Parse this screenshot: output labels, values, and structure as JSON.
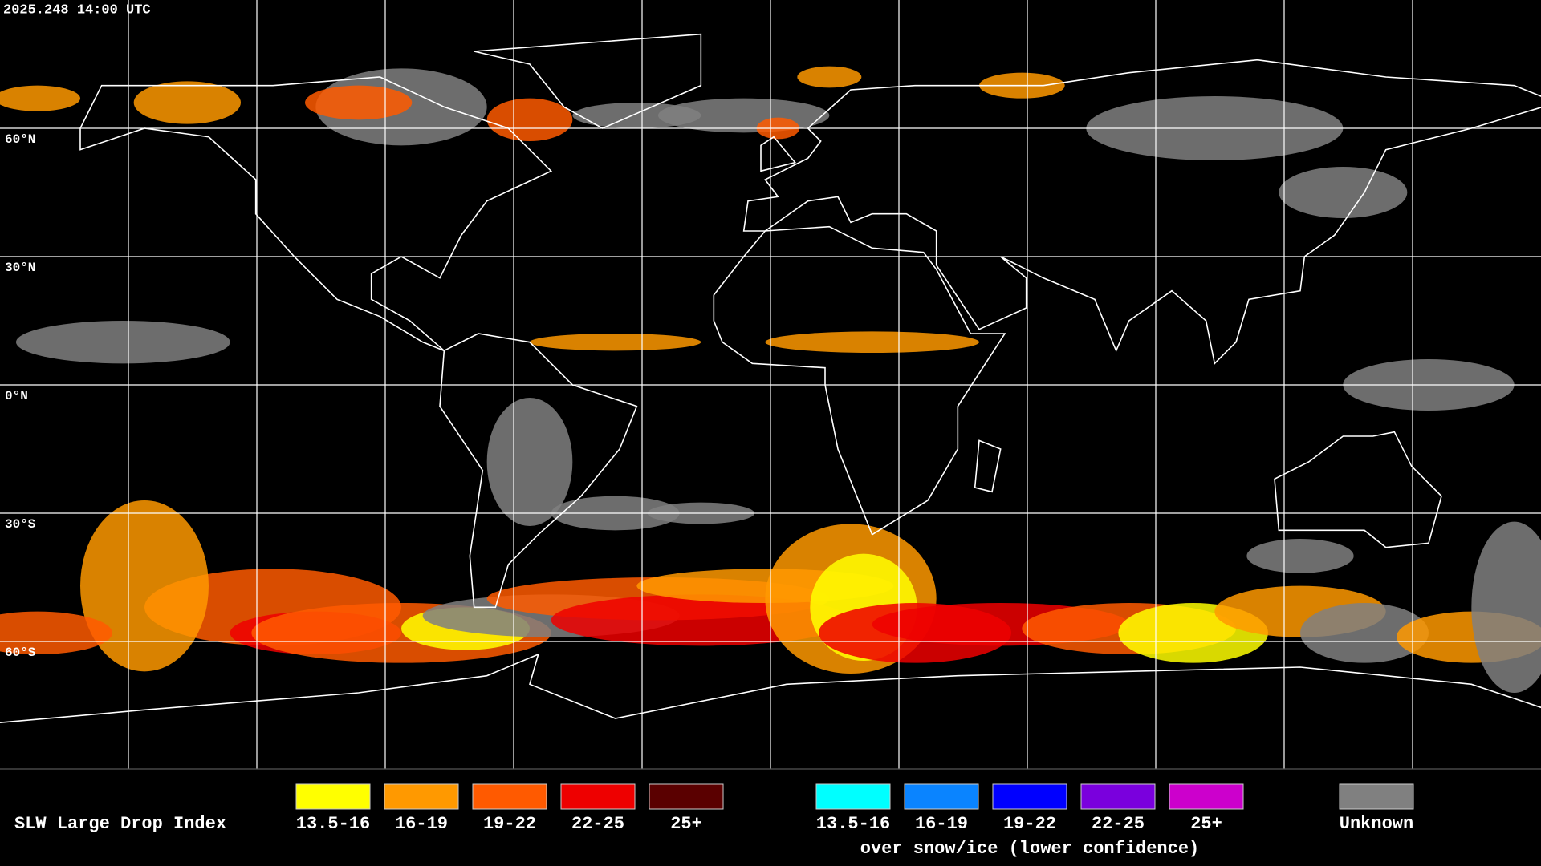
{
  "header": {
    "timestamp": "2025.248 14:00 UTC"
  },
  "map": {
    "latitude_labels": [
      "60°N",
      "30°N",
      "0°N",
      "30°S",
      "60°S"
    ]
  },
  "legend": {
    "title": "SLW Large Drop Index",
    "groups": [
      {
        "items": [
          {
            "label": "13.5-16",
            "color": "#ffff00"
          },
          {
            "label": "16-19",
            "color": "#ff9900"
          },
          {
            "label": "19-22",
            "color": "#ff5a00"
          },
          {
            "label": "22-25",
            "color": "#ee0000"
          },
          {
            "label": "25+",
            "color": "#5a0000"
          }
        ]
      },
      {
        "items": [
          {
            "label": "13.5-16",
            "color": "#00ffff"
          },
          {
            "label": "16-19",
            "color": "#0a84ff"
          },
          {
            "label": "19-22",
            "color": "#0000ff"
          },
          {
            "label": "22-25",
            "color": "#7a00dd"
          },
          {
            "label": "25+",
            "color": "#cc00cc"
          }
        ],
        "note": "over snow/ice (lower confidence)"
      }
    ],
    "unknown": {
      "label": "Unknown",
      "color": "#808080"
    }
  }
}
